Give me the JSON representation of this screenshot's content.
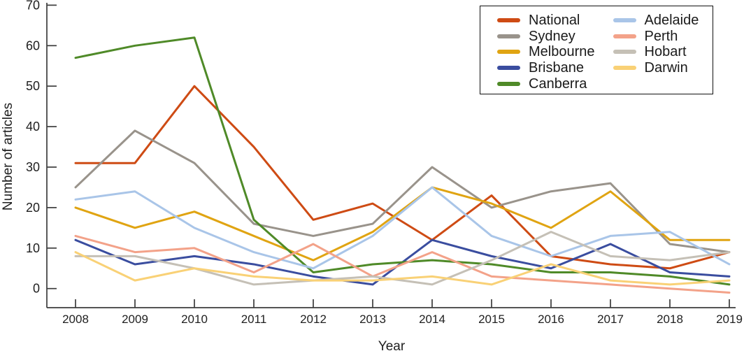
{
  "figure": {
    "title": "",
    "xlabel": "Year",
    "ylabel": "Number of articles"
  },
  "chart_data": {
    "type": "line",
    "x": [
      2008,
      2009,
      2010,
      2011,
      2012,
      2013,
      2014,
      2015,
      2016,
      2017,
      2018,
      2019
    ],
    "xlabel": "Year",
    "ylabel": "Number of articles",
    "ylim": [
      0,
      70
    ],
    "yticks": [
      0,
      10,
      20,
      30,
      40,
      50,
      60,
      70
    ],
    "grid": false,
    "legend_position": "top-right",
    "legend_border": true,
    "series": [
      {
        "name": "National",
        "color": "#CE4B14",
        "values": [
          31,
          31,
          50,
          35,
          17,
          21,
          12,
          23,
          8,
          6,
          5,
          9
        ]
      },
      {
        "name": "Sydney",
        "color": "#99938B",
        "values": [
          25,
          39,
          31,
          16,
          13,
          16,
          30,
          20,
          24,
          26,
          11,
          9
        ]
      },
      {
        "name": "Melbourne",
        "color": "#E0A412",
        "values": [
          20,
          15,
          19,
          13,
          7,
          14,
          25,
          21,
          15,
          24,
          12,
          12
        ]
      },
      {
        "name": "Brisbane",
        "color": "#3A4D9F",
        "values": [
          12,
          6,
          8,
          6,
          3,
          1,
          12,
          8,
          5,
          11,
          4,
          3
        ]
      },
      {
        "name": "Canberra",
        "color": "#4F8A28",
        "values": [
          57,
          60,
          62,
          17,
          4,
          6,
          7,
          6,
          4,
          4,
          3,
          1
        ]
      },
      {
        "name": "Adelaide",
        "color": "#A9C5E8",
        "values": [
          22,
          24,
          15,
          9,
          5,
          13,
          25,
          13,
          8,
          13,
          14,
          6
        ]
      },
      {
        "name": "Perth",
        "color": "#F3A289",
        "values": [
          13,
          9,
          10,
          4,
          11,
          3,
          9,
          3,
          2,
          1,
          0,
          -1
        ]
      },
      {
        "name": "Hobart",
        "color": "#C5C0B6",
        "values": [
          8,
          8,
          5,
          1,
          2,
          3,
          1,
          7,
          14,
          8,
          7,
          9
        ]
      },
      {
        "name": "Darwin",
        "color": "#F9D176",
        "values": [
          9,
          2,
          5,
          3,
          2,
          2,
          3,
          1,
          6,
          2,
          1,
          2
        ]
      }
    ]
  }
}
